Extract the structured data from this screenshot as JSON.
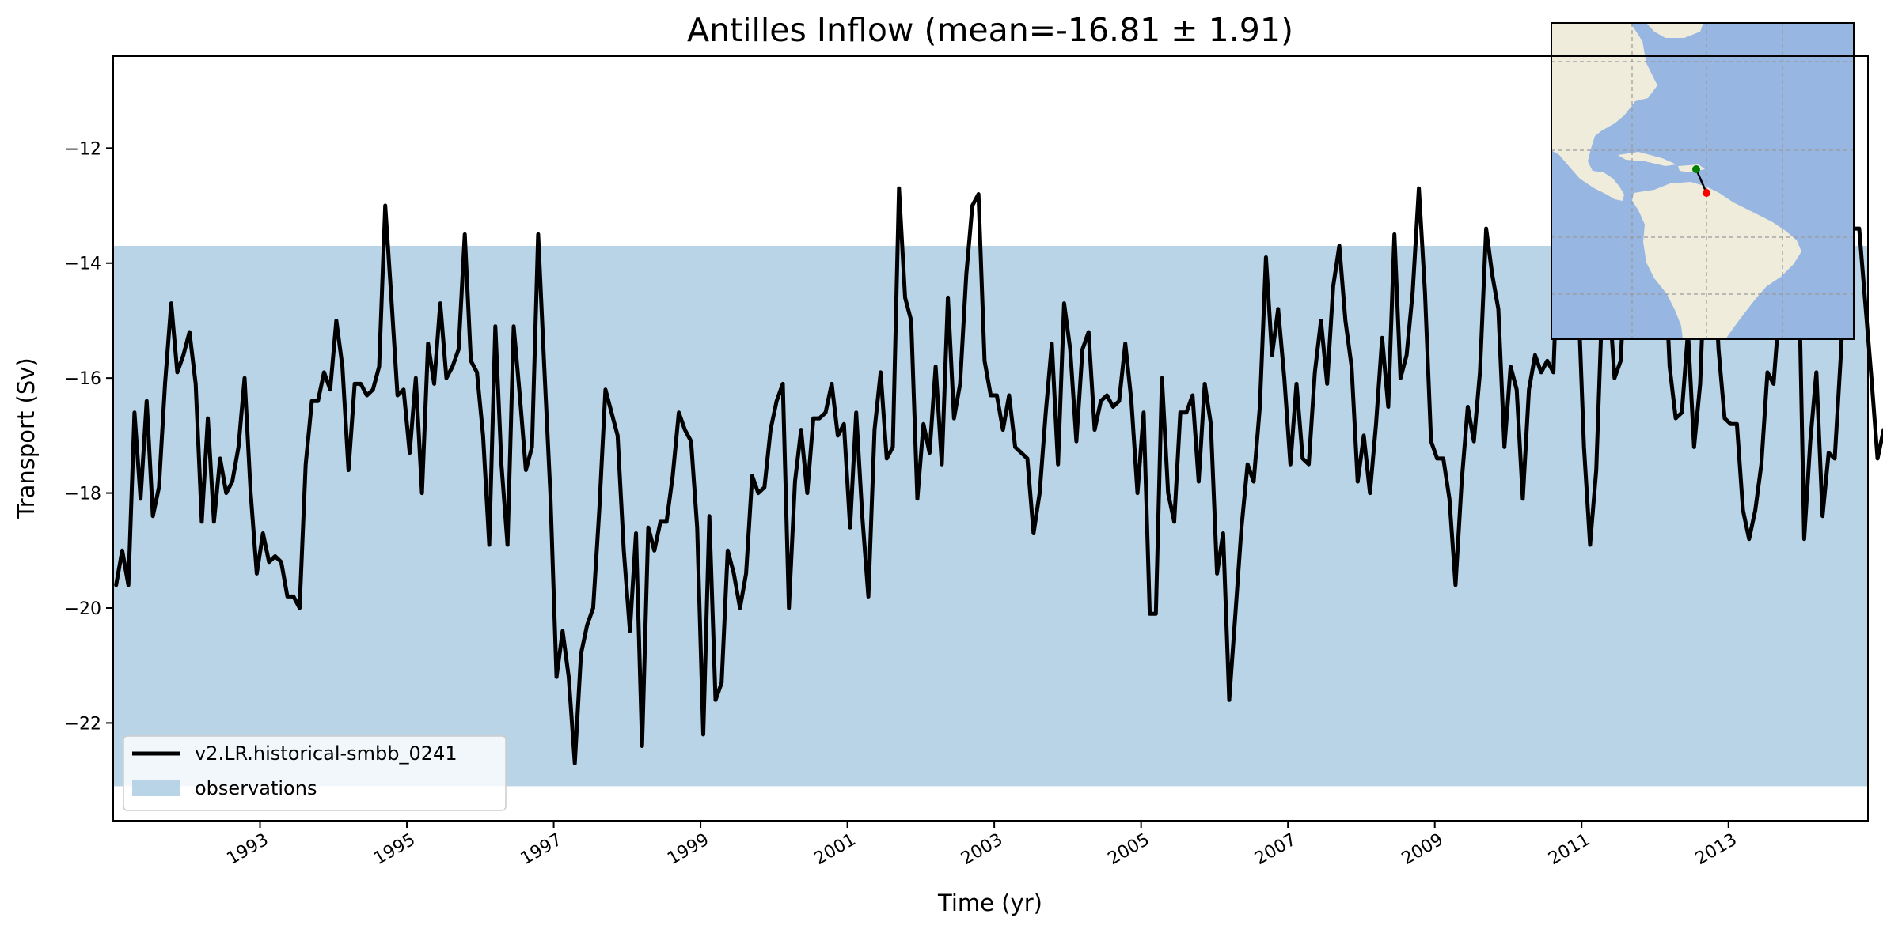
{
  "chart_data": {
    "type": "line",
    "title": "Antilles Inflow (mean=-16.81 ± 1.91)",
    "xlabel": "Time (yr)",
    "ylabel": "Transport (Sv)",
    "xlim": [
      1991.0,
      2014.9
    ],
    "ylim": [
      -23.7,
      -10.4
    ],
    "x_ticks": [
      1993,
      1995,
      1997,
      1999,
      2001,
      2003,
      2005,
      2007,
      2009,
      2011,
      2013
    ],
    "y_ticks": [
      -22,
      -20,
      -18,
      -16,
      -14,
      -12
    ],
    "y_tick_labels": [
      "−22",
      "−20",
      "−18",
      "−16",
      "−14",
      "−12"
    ],
    "x_start": 1991.04,
    "x_step": 0.0833,
    "series": [
      {
        "name": "v2.LR.historical-smbb_0241",
        "color": "#000000",
        "values": [
          -19.6,
          -19.0,
          -19.6,
          -16.6,
          -18.1,
          -16.4,
          -18.4,
          -17.9,
          -16.1,
          -14.7,
          -15.9,
          -15.6,
          -15.2,
          -16.1,
          -18.5,
          -16.7,
          -18.5,
          -17.4,
          -18.0,
          -17.8,
          -17.2,
          -16.0,
          -18.0,
          -19.4,
          -18.7,
          -19.2,
          -19.1,
          -19.2,
          -19.8,
          -19.8,
          -20.0,
          -17.5,
          -16.4,
          -16.4,
          -15.9,
          -16.2,
          -15.0,
          -15.8,
          -17.6,
          -16.1,
          -16.1,
          -16.3,
          -16.2,
          -15.8,
          -13.0,
          -14.6,
          -16.3,
          -16.2,
          -17.3,
          -16.0,
          -18.0,
          -15.4,
          -16.1,
          -14.7,
          -16.0,
          -15.8,
          -15.5,
          -13.5,
          -15.7,
          -15.9,
          -17.0,
          -18.9,
          -15.1,
          -17.5,
          -18.9,
          -15.1,
          -16.3,
          -17.6,
          -17.2,
          -13.5,
          -15.8,
          -18.0,
          -21.2,
          -20.4,
          -21.2,
          -22.7,
          -20.8,
          -20.3,
          -20.0,
          -18.3,
          -16.2,
          -16.6,
          -17.0,
          -19.0,
          -20.4,
          -18.7,
          -22.4,
          -18.6,
          -19.0,
          -18.5,
          -18.5,
          -17.7,
          -16.6,
          -16.9,
          -17.1,
          -18.6,
          -22.2,
          -18.4,
          -21.6,
          -21.3,
          -19.0,
          -19.4,
          -20.0,
          -19.4,
          -17.7,
          -18.0,
          -17.9,
          -16.9,
          -16.4,
          -16.1,
          -20.0,
          -17.8,
          -16.9,
          -18.0,
          -16.7,
          -16.7,
          -16.6,
          -16.1,
          -17.0,
          -16.8,
          -18.6,
          -16.6,
          -18.4,
          -19.8,
          -16.9,
          -15.9,
          -17.4,
          -17.2,
          -12.7,
          -14.6,
          -15.0,
          -18.1,
          -16.8,
          -17.3,
          -15.8,
          -17.5,
          -14.6,
          -16.7,
          -16.1,
          -14.2,
          -13.0,
          -12.8,
          -15.7,
          -16.3,
          -16.3,
          -16.9,
          -16.3,
          -17.2,
          -17.3,
          -17.4,
          -18.7,
          -18.0,
          -16.6,
          -15.4,
          -17.5,
          -14.7,
          -15.5,
          -17.1,
          -15.5,
          -15.2,
          -16.9,
          -16.4,
          -16.3,
          -16.5,
          -16.4,
          -15.4,
          -16.4,
          -18.0,
          -16.6,
          -20.1,
          -20.1,
          -16.0,
          -18.0,
          -18.5,
          -16.6,
          -16.6,
          -16.3,
          -17.8,
          -16.1,
          -16.8,
          -19.4,
          -18.7,
          -21.6,
          -20.1,
          -18.6,
          -17.5,
          -17.8,
          -16.5,
          -13.9,
          -15.6,
          -14.8,
          -16.0,
          -17.5,
          -16.1,
          -17.4,
          -17.5,
          -15.9,
          -15.0,
          -16.1,
          -14.4,
          -13.7,
          -15.0,
          -15.8,
          -17.8,
          -17.0,
          -18.0,
          -16.8,
          -15.3,
          -16.5,
          -13.5,
          -16.0,
          -15.6,
          -14.5,
          -12.7,
          -14.5,
          -17.1,
          -17.4,
          -17.4,
          -18.1,
          -19.6,
          -17.8,
          -16.5,
          -17.1,
          -15.9,
          -13.4,
          -14.2,
          -14.8,
          -17.2,
          -15.8,
          -16.2,
          -18.1,
          -16.2,
          -15.6,
          -15.9,
          -15.7,
          -15.9,
          -13.0,
          -12.7,
          -13.0,
          -14.4,
          -17.2,
          -18.9,
          -17.6,
          -14.6,
          -14.4,
          -16.0,
          -15.7,
          -13.6,
          -13.4,
          -13.4,
          -13.4,
          -13.4,
          -13.4,
          -13.4,
          -15.8,
          -16.7,
          -16.6,
          -15.2,
          -17.2,
          -16.1,
          -13.4,
          -13.4,
          -15.5,
          -16.7,
          -16.8,
          -16.8,
          -18.3,
          -18.8,
          -18.3,
          -17.5,
          -15.9,
          -16.1,
          -14.7,
          -13.4,
          -13.4,
          -13.4,
          -18.8,
          -17.1,
          -15.9,
          -18.4,
          -17.3,
          -17.4,
          -15.6,
          -13.4,
          -13.4,
          -13.4,
          -14.7,
          -16.0,
          -17.4,
          -16.9
        ]
      }
    ],
    "observations": {
      "name": "observations",
      "color": "#bad4e7",
      "ymin": -23.1,
      "ymax": -13.7
    },
    "legend_position": "lower-left",
    "grid": false,
    "inset_map": {
      "land_color": "#efecdc",
      "ocean_color": "#97b6e1",
      "gridline_color": "#9a9a9a",
      "start_marker_color": "#008000",
      "end_marker_color": "#ff0000"
    }
  }
}
